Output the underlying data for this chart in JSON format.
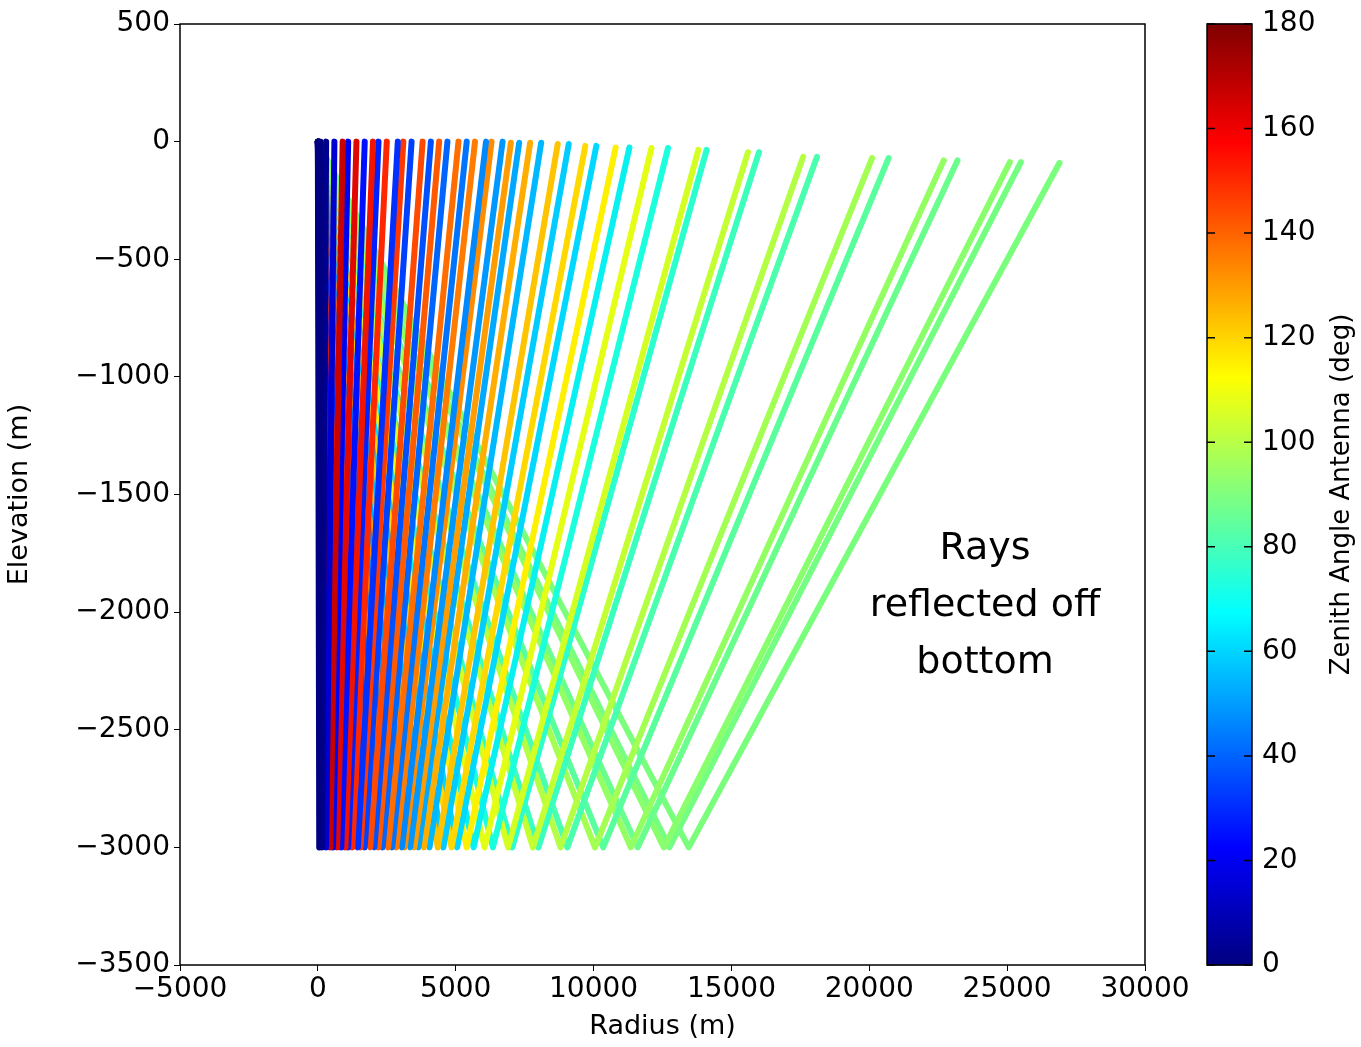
{
  "chart_data": {
    "type": "line",
    "xlabel": "Radius (m)",
    "ylabel": "Elevation (m)",
    "clabel": "Zenith Angle Antenna (deg)",
    "clim": [
      0,
      180
    ],
    "cticks": [
      0,
      20,
      40,
      60,
      80,
      100,
      120,
      140,
      160,
      180
    ],
    "xlim": [
      -5000,
      30000
    ],
    "xticks": [
      -5000,
      0,
      5000,
      10000,
      15000,
      20000,
      25000,
      30000
    ],
    "ylim": [
      -3500,
      500
    ],
    "yticks": [
      -3500,
      -3000,
      -2500,
      -2000,
      -1500,
      -1000,
      -500,
      0,
      500
    ],
    "annotations": [
      "Rays reflected off bottom"
    ],
    "series": [
      {
        "color": "#7aff7d",
        "x": [
          0,
          13450,
          26900
        ],
        "values": [
          0,
          -3000,
          -90
        ]
      },
      {
        "color": "#74ff83",
        "x": [
          0,
          12750,
          25500
        ],
        "values": [
          0,
          -3000,
          -87
        ]
      },
      {
        "color": "#8aff6d",
        "x": [
          0,
          12550,
          25100
        ],
        "values": [
          0,
          -3000,
          -87
        ]
      },
      {
        "color": "#6aff8d",
        "x": [
          0,
          11600,
          23200
        ],
        "values": [
          0,
          -3000,
          -80
        ]
      },
      {
        "color": "#94ff63",
        "x": [
          0,
          11350,
          22700
        ],
        "values": [
          0,
          -3000,
          -80
        ]
      },
      {
        "color": "#5aff9d",
        "x": [
          0,
          10350,
          20700
        ],
        "values": [
          0,
          -3000,
          -70
        ]
      },
      {
        "color": "#a4ff53",
        "x": [
          0,
          10050,
          20100
        ],
        "values": [
          0,
          -3000,
          -70
        ]
      },
      {
        "color": "#4affad",
        "x": [
          0,
          9050,
          18100
        ],
        "values": [
          0,
          -3000,
          -65
        ]
      },
      {
        "color": "#b4ff43",
        "x": [
          0,
          8800,
          17600
        ],
        "values": [
          0,
          -3000,
          -65
        ]
      },
      {
        "color": "#3affbd",
        "x": [
          0,
          8000,
          16000
        ],
        "values": [
          0,
          -3000,
          -45
        ]
      },
      {
        "color": "#c4ff33",
        "x": [
          0,
          7800,
          15600
        ],
        "values": [
          0,
          -3000,
          -45
        ]
      },
      {
        "color": "#2affcd",
        "x": [
          0,
          7050,
          14100
        ],
        "values": [
          0,
          -3000,
          -35
        ]
      },
      {
        "color": "#d4ff23",
        "x": [
          0,
          6900,
          13800
        ],
        "values": [
          0,
          -3000,
          -35
        ]
      },
      {
        "color": "#1affdd",
        "x": [
          0,
          6350,
          12700
        ],
        "values": [
          0,
          -3000,
          -27
        ]
      },
      {
        "color": "#e4ff13",
        "x": [
          0,
          6050,
          12100
        ],
        "values": [
          0,
          -3000,
          -27
        ]
      },
      {
        "color": "#08f0f0",
        "x": [
          0,
          5650,
          11300
        ],
        "values": [
          0,
          -3000,
          -25
        ]
      },
      {
        "color": "#fff000",
        "x": [
          0,
          5400,
          10800
        ],
        "values": [
          0,
          -3000,
          -25
        ]
      },
      {
        "color": "#00d8ff",
        "x": [
          0,
          5050,
          10100
        ],
        "values": [
          0,
          -3000,
          -18
        ]
      },
      {
        "color": "#ffd800",
        "x": [
          0,
          4850,
          9700
        ],
        "values": [
          0,
          -3000,
          -18
        ]
      },
      {
        "color": "#00ccff",
        "x": [
          0,
          4550,
          9100
        ],
        "values": [
          0,
          -3000,
          -10
        ]
      },
      {
        "color": "#ffc400",
        "x": [
          0,
          4350,
          8700
        ],
        "values": [
          0,
          -3000,
          -10
        ]
      },
      {
        "color": "#00b8ff",
        "x": [
          0,
          4050,
          8100
        ],
        "values": [
          0,
          -3000,
          -5
        ]
      },
      {
        "color": "#ffae00",
        "x": [
          0,
          3850,
          7700
        ],
        "values": [
          0,
          -3000,
          -5
        ]
      },
      {
        "color": "#00a8ff",
        "x": [
          0,
          3650,
          7300
        ],
        "values": [
          0,
          -3000,
          -5
        ]
      },
      {
        "color": "#ff9c00",
        "x": [
          0,
          3500,
          7000
        ],
        "values": [
          0,
          -3000,
          -5
        ]
      },
      {
        "color": "#0098ff",
        "x": [
          0,
          3350,
          6700
        ],
        "values": [
          0,
          -3000,
          0
        ]
      },
      {
        "color": "#ff8c00",
        "x": [
          0,
          3150,
          6300
        ],
        "values": [
          0,
          -3000,
          0
        ]
      },
      {
        "color": "#0088ff",
        "x": [
          0,
          3050,
          6100
        ],
        "values": [
          0,
          -3000,
          0
        ]
      },
      {
        "color": "#ff7c00",
        "x": [
          0,
          2850,
          5700
        ],
        "values": [
          0,
          -3000,
          0
        ]
      },
      {
        "color": "#0074ff",
        "x": [
          0,
          2700,
          5400
        ],
        "values": [
          0,
          -3000,
          0
        ]
      },
      {
        "color": "#ff6c00",
        "x": [
          0,
          2550,
          5100
        ],
        "values": [
          0,
          -3000,
          0
        ]
      },
      {
        "color": "#0064ff",
        "x": [
          0,
          2350,
          4700
        ],
        "values": [
          0,
          -3000,
          0
        ]
      },
      {
        "color": "#ff5a00",
        "x": [
          0,
          2200,
          4400
        ],
        "values": [
          0,
          -3000,
          0
        ]
      },
      {
        "color": "#0050ff",
        "x": [
          0,
          2050,
          4100
        ],
        "values": [
          0,
          -3000,
          0
        ]
      },
      {
        "color": "#ff4800",
        "x": [
          0,
          1900,
          3800
        ],
        "values": [
          0,
          -3000,
          0
        ]
      },
      {
        "color": "#0040ff",
        "x": [
          0,
          1700,
          3400
        ],
        "values": [
          0,
          -3000,
          0
        ]
      },
      {
        "color": "#ff3800",
        "x": [
          0,
          1550,
          3100
        ],
        "values": [
          0,
          -3000,
          0
        ]
      },
      {
        "color": "#0030ff",
        "x": [
          0,
          1450,
          2900
        ],
        "values": [
          0,
          -3000,
          0
        ]
      },
      {
        "color": "#ff2600",
        "x": [
          0,
          1250,
          2500
        ],
        "values": [
          0,
          -3000,
          0
        ]
      },
      {
        "color": "#0020ff",
        "x": [
          0,
          1100,
          2200
        ],
        "values": [
          0,
          -3000,
          0
        ]
      },
      {
        "color": "#f01400",
        "x": [
          0,
          1000,
          2000
        ],
        "values": [
          0,
          -3000,
          0
        ]
      },
      {
        "color": "#0010ff",
        "x": [
          0,
          850,
          1700
        ],
        "values": [
          0,
          -3000,
          0
        ]
      },
      {
        "color": "#e00800",
        "x": [
          0,
          700,
          1400
        ],
        "values": [
          0,
          -3000,
          0
        ]
      },
      {
        "color": "#0000f0",
        "x": [
          0,
          550,
          1100
        ],
        "values": [
          0,
          -3000,
          0
        ]
      },
      {
        "color": "#c80000",
        "x": [
          0,
          450,
          900
        ],
        "values": [
          0,
          -3000,
          0
        ]
      },
      {
        "color": "#0000d0",
        "x": [
          0,
          300,
          600
        ],
        "values": [
          0,
          -3000,
          0
        ]
      },
      {
        "color": "#000090",
        "x": [
          0,
          150,
          300
        ],
        "values": [
          0,
          -3000,
          0
        ]
      },
      {
        "color": "#000080",
        "x": [
          0,
          50,
          100
        ],
        "values": [
          0,
          -3000,
          0
        ]
      }
    ]
  }
}
